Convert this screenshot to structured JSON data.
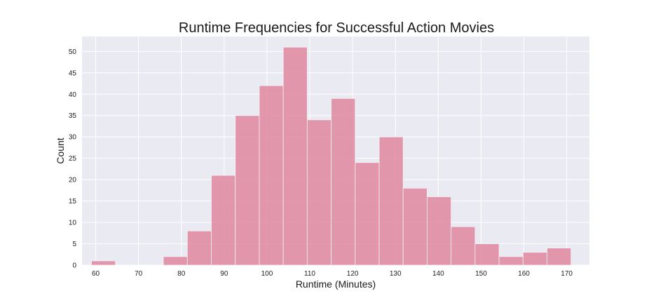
{
  "chart_data": {
    "type": "histogram",
    "title": "Runtime Frequencies for Successful Action Movies",
    "xlabel": "Runtime (Minutes)",
    "ylabel": "Count",
    "xlim": [
      56.8,
      175.3
    ],
    "ylim": [
      0,
      53.5
    ],
    "xticks": [
      60,
      70,
      80,
      90,
      100,
      110,
      120,
      130,
      140,
      150,
      160,
      170
    ],
    "yticks": [
      0,
      5,
      10,
      15,
      20,
      25,
      30,
      35,
      40,
      45,
      50
    ],
    "bin_edges": [
      59.0,
      64.6,
      70.2,
      75.8,
      81.4,
      87.0,
      92.6,
      98.2,
      103.8,
      109.4,
      115.0,
      120.6,
      126.2,
      131.8,
      137.4,
      143.0,
      148.6,
      154.2,
      159.8,
      165.4,
      171.0
    ],
    "counts": [
      1,
      0,
      0,
      2,
      8,
      21,
      35,
      42,
      51,
      34,
      39,
      24,
      30,
      18,
      16,
      9,
      5,
      2,
      3,
      4
    ],
    "grid": true,
    "colors": {
      "bar": "#e0879f",
      "bar_opacity": 0.85,
      "background": "#eaeaf2",
      "grid": "#ffffff"
    }
  }
}
